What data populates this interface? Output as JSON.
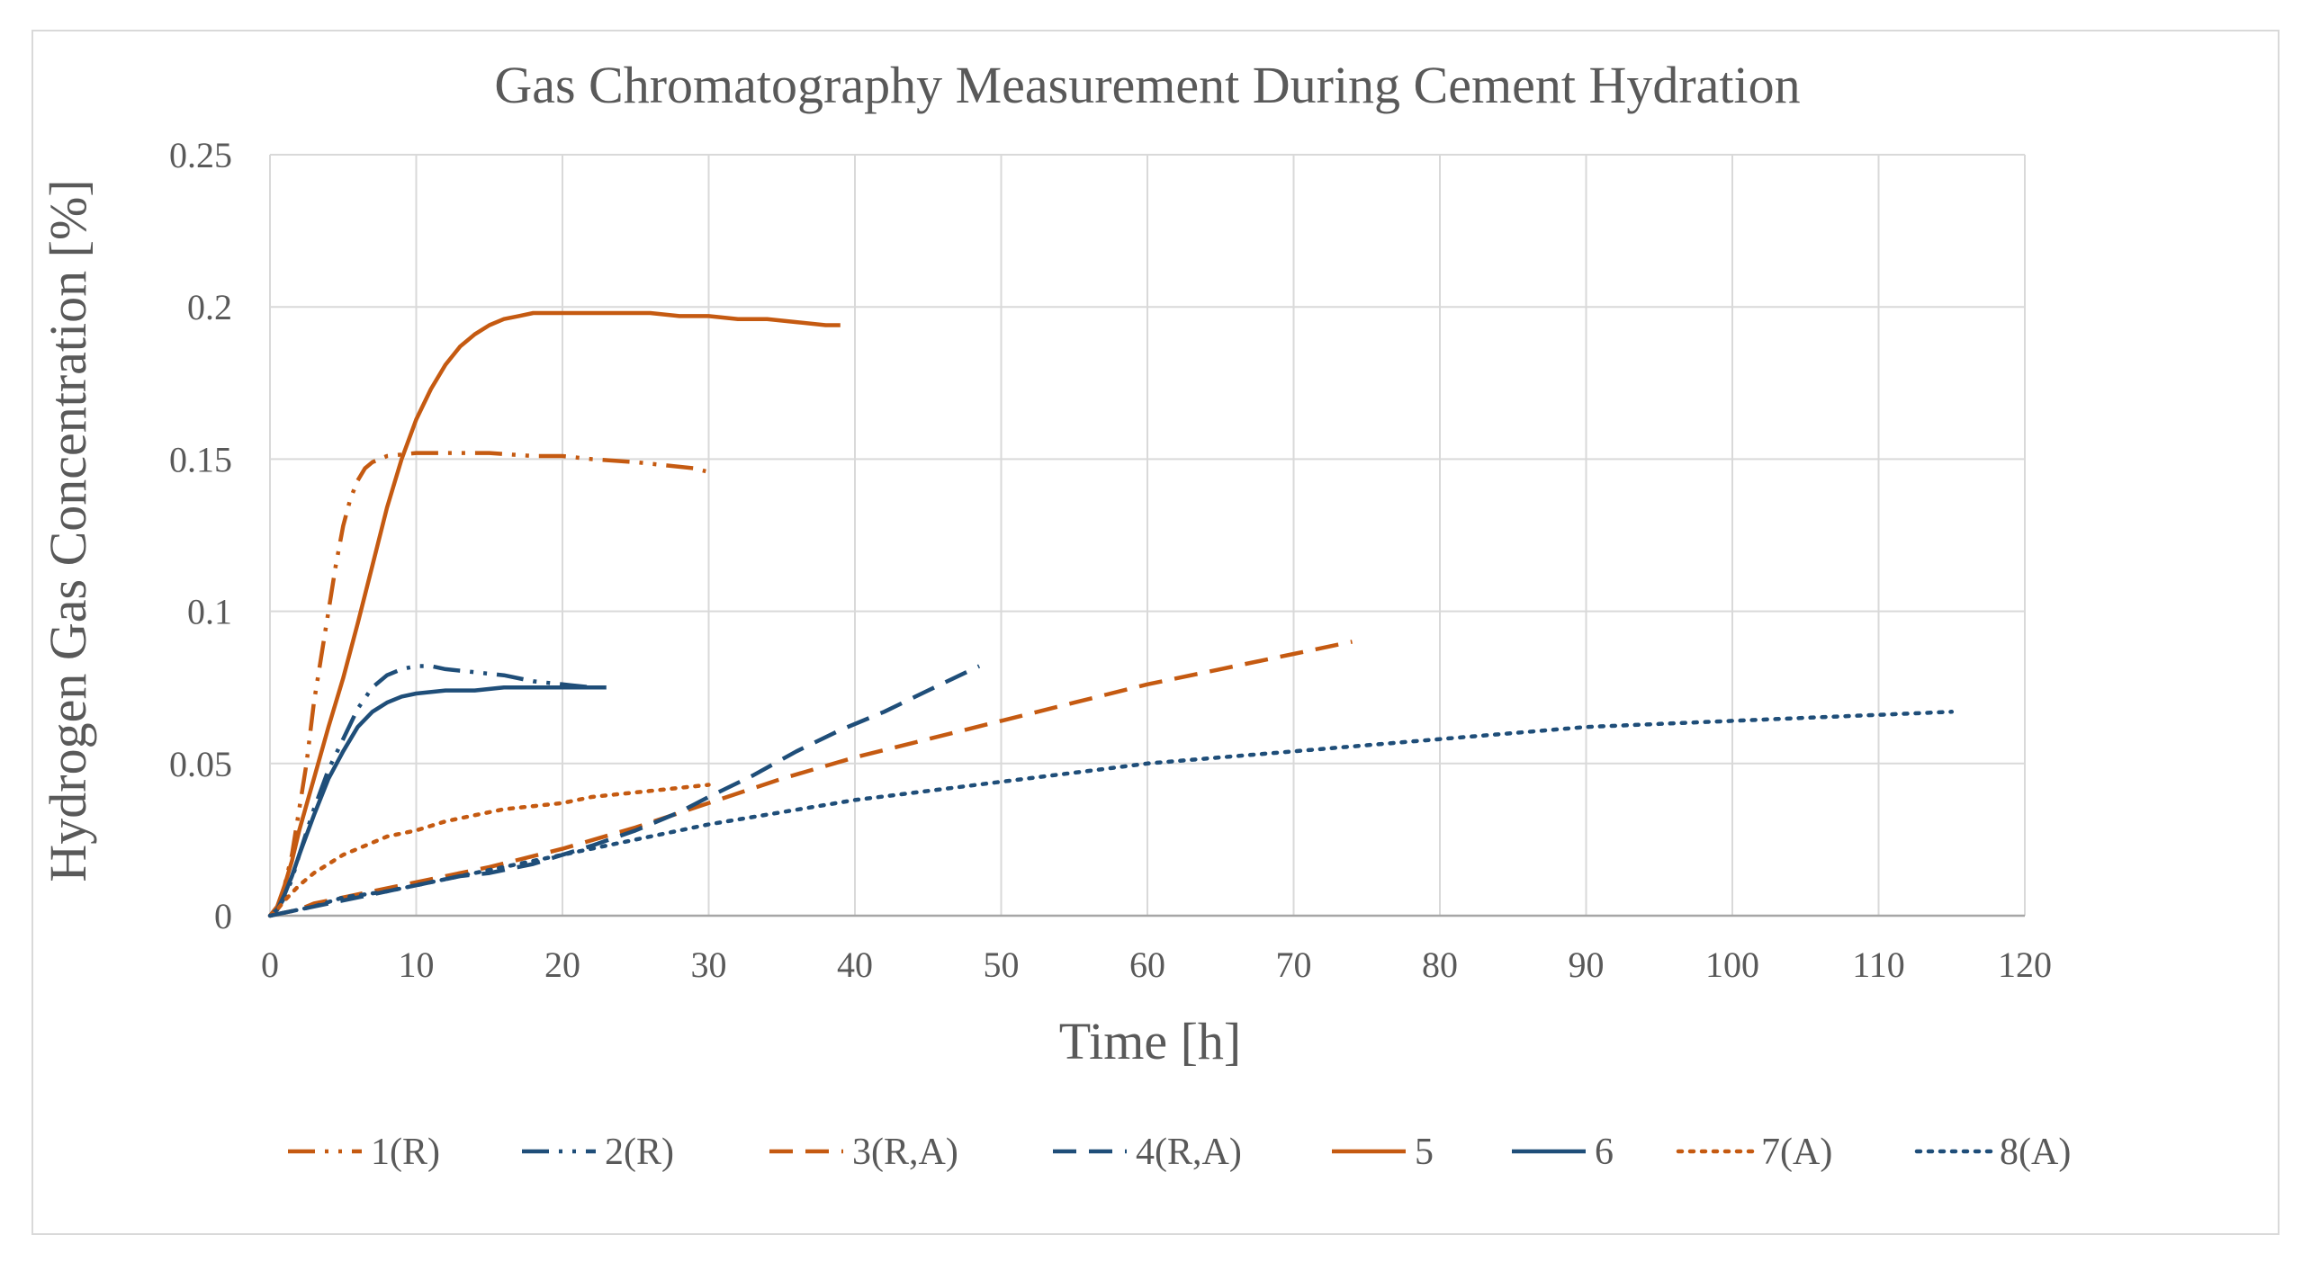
{
  "chart_data": {
    "type": "line",
    "title": "Gas Chromatography Measurement During Cement Hydration",
    "xlabel": "Time [h]",
    "ylabel": "Hydrogen Gas Concentration [%]",
    "xlim": [
      0,
      120
    ],
    "ylim": [
      0,
      0.25
    ],
    "x_ticks": [
      "0",
      "10",
      "20",
      "30",
      "40",
      "50",
      "60",
      "70",
      "80",
      "90",
      "100",
      "110",
      "120"
    ],
    "y_ticks": [
      "0",
      "0.05",
      "0.1",
      "0.15",
      "0.2",
      "0.25"
    ],
    "grid": true,
    "legend_position": "bottom",
    "series": [
      {
        "name": "1(R)",
        "color": "#C55A11",
        "dash": "long-dash-dot-dot",
        "points": [
          [
            0,
            0
          ],
          [
            0.5,
            0.002
          ],
          [
            1,
            0.01
          ],
          [
            1.5,
            0.02
          ],
          [
            2,
            0.035
          ],
          [
            2.5,
            0.05
          ],
          [
            3,
            0.07
          ],
          [
            3.5,
            0.085
          ],
          [
            4,
            0.1
          ],
          [
            4.5,
            0.115
          ],
          [
            5,
            0.128
          ],
          [
            5.5,
            0.137
          ],
          [
            6,
            0.143
          ],
          [
            6.5,
            0.147
          ],
          [
            7,
            0.149
          ],
          [
            8,
            0.151
          ],
          [
            10,
            0.152
          ],
          [
            12,
            0.152
          ],
          [
            15,
            0.152
          ],
          [
            18,
            0.151
          ],
          [
            20,
            0.151
          ],
          [
            22,
            0.15
          ],
          [
            25,
            0.149
          ],
          [
            27,
            0.148
          ],
          [
            29,
            0.147
          ],
          [
            29.8,
            0.146
          ]
        ]
      },
      {
        "name": "2(R)",
        "color": "#1F4E79",
        "dash": "long-dash-dot-dot",
        "points": [
          [
            0,
            0
          ],
          [
            0.5,
            0.002
          ],
          [
            1,
            0.006
          ],
          [
            1.5,
            0.012
          ],
          [
            2,
            0.02
          ],
          [
            3,
            0.035
          ],
          [
            4,
            0.048
          ],
          [
            5,
            0.058
          ],
          [
            6,
            0.068
          ],
          [
            7,
            0.075
          ],
          [
            8,
            0.079
          ],
          [
            9,
            0.081
          ],
          [
            10,
            0.082
          ],
          [
            11,
            0.082
          ],
          [
            12,
            0.081
          ],
          [
            14,
            0.08
          ],
          [
            16,
            0.079
          ],
          [
            18,
            0.077
          ],
          [
            20,
            0.076
          ],
          [
            22,
            0.075
          ],
          [
            23,
            0.075
          ]
        ]
      },
      {
        "name": "3(R,A)",
        "color": "#C55A11",
        "dash": "long-dash",
        "points": [
          [
            0,
            0
          ],
          [
            1,
            0.001
          ],
          [
            2,
            0.002
          ],
          [
            3,
            0.004
          ],
          [
            5,
            0.006
          ],
          [
            7,
            0.008
          ],
          [
            10,
            0.011
          ],
          [
            15,
            0.016
          ],
          [
            20,
            0.022
          ],
          [
            25,
            0.029
          ],
          [
            30,
            0.037
          ],
          [
            35,
            0.045
          ],
          [
            40,
            0.052
          ],
          [
            45,
            0.058
          ],
          [
            50,
            0.064
          ],
          [
            55,
            0.07
          ],
          [
            60,
            0.076
          ],
          [
            65,
            0.081
          ],
          [
            70,
            0.086
          ],
          [
            74,
            0.09
          ]
        ]
      },
      {
        "name": "4(R,A)",
        "color": "#1F4E79",
        "dash": "long-dash",
        "points": [
          [
            0,
            0
          ],
          [
            1,
            0.001
          ],
          [
            2,
            0.002
          ],
          [
            3,
            0.003
          ],
          [
            5,
            0.005
          ],
          [
            8,
            0.008
          ],
          [
            10,
            0.01
          ],
          [
            13,
            0.013
          ],
          [
            15,
            0.014
          ],
          [
            18,
            0.017
          ],
          [
            20,
            0.02
          ],
          [
            22,
            0.023
          ],
          [
            25,
            0.028
          ],
          [
            28,
            0.034
          ],
          [
            30,
            0.039
          ],
          [
            33,
            0.046
          ],
          [
            36,
            0.054
          ],
          [
            39,
            0.061
          ],
          [
            42,
            0.067
          ],
          [
            45,
            0.074
          ],
          [
            48.5,
            0.082
          ]
        ]
      },
      {
        "name": "5",
        "color": "#C55A11",
        "dash": "solid",
        "points": [
          [
            0,
            0
          ],
          [
            0.5,
            0.003
          ],
          [
            1,
            0.01
          ],
          [
            1.5,
            0.018
          ],
          [
            2,
            0.028
          ],
          [
            3,
            0.045
          ],
          [
            4,
            0.062
          ],
          [
            5,
            0.078
          ],
          [
            6,
            0.096
          ],
          [
            7,
            0.115
          ],
          [
            8,
            0.134
          ],
          [
            9,
            0.15
          ],
          [
            10,
            0.163
          ],
          [
            11,
            0.173
          ],
          [
            12,
            0.181
          ],
          [
            13,
            0.187
          ],
          [
            14,
            0.191
          ],
          [
            15,
            0.194
          ],
          [
            16,
            0.196
          ],
          [
            17,
            0.197
          ],
          [
            18,
            0.198
          ],
          [
            20,
            0.198
          ],
          [
            22,
            0.198
          ],
          [
            24,
            0.198
          ],
          [
            26,
            0.198
          ],
          [
            28,
            0.197
          ],
          [
            30,
            0.197
          ],
          [
            32,
            0.196
          ],
          [
            34,
            0.196
          ],
          [
            36,
            0.195
          ],
          [
            38,
            0.194
          ],
          [
            39,
            0.194
          ]
        ]
      },
      {
        "name": "6",
        "color": "#1F4E79",
        "dash": "solid",
        "points": [
          [
            0,
            0
          ],
          [
            0.5,
            0.002
          ],
          [
            1,
            0.007
          ],
          [
            1.5,
            0.013
          ],
          [
            2,
            0.02
          ],
          [
            3,
            0.033
          ],
          [
            4,
            0.045
          ],
          [
            5,
            0.054
          ],
          [
            6,
            0.062
          ],
          [
            7,
            0.067
          ],
          [
            8,
            0.07
          ],
          [
            9,
            0.072
          ],
          [
            10,
            0.073
          ],
          [
            12,
            0.074
          ],
          [
            14,
            0.074
          ],
          [
            16,
            0.075
          ],
          [
            18,
            0.075
          ],
          [
            20,
            0.075
          ],
          [
            23,
            0.075
          ]
        ]
      },
      {
        "name": "7(A)",
        "color": "#C55A11",
        "dash": "dot",
        "points": [
          [
            0,
            0
          ],
          [
            0.5,
            0.002
          ],
          [
            1,
            0.005
          ],
          [
            2,
            0.01
          ],
          [
            3,
            0.014
          ],
          [
            4,
            0.017
          ],
          [
            5,
            0.02
          ],
          [
            6,
            0.022
          ],
          [
            7,
            0.024
          ],
          [
            8,
            0.026
          ],
          [
            10,
            0.028
          ],
          [
            12,
            0.031
          ],
          [
            14,
            0.033
          ],
          [
            16,
            0.035
          ],
          [
            18,
            0.036
          ],
          [
            20,
            0.037
          ],
          [
            22,
            0.039
          ],
          [
            24,
            0.04
          ],
          [
            26,
            0.041
          ],
          [
            28,
            0.042
          ],
          [
            30,
            0.043
          ]
        ]
      },
      {
        "name": "8(A)",
        "color": "#1F4E79",
        "dash": "dot",
        "points": [
          [
            0,
            0
          ],
          [
            1,
            0.001
          ],
          [
            2,
            0.002
          ],
          [
            3,
            0.003
          ],
          [
            5,
            0.006
          ],
          [
            8,
            0.008
          ],
          [
            10,
            0.01
          ],
          [
            15,
            0.015
          ],
          [
            20,
            0.02
          ],
          [
            25,
            0.025
          ],
          [
            30,
            0.03
          ],
          [
            35,
            0.034
          ],
          [
            40,
            0.038
          ],
          [
            45,
            0.041
          ],
          [
            50,
            0.044
          ],
          [
            55,
            0.047
          ],
          [
            60,
            0.05
          ],
          [
            65,
            0.052
          ],
          [
            70,
            0.054
          ],
          [
            75,
            0.056
          ],
          [
            80,
            0.058
          ],
          [
            85,
            0.06
          ],
          [
            90,
            0.062
          ],
          [
            95,
            0.063
          ],
          [
            100,
            0.064
          ],
          [
            105,
            0.065
          ],
          [
            110,
            0.066
          ],
          [
            115,
            0.067
          ]
        ]
      }
    ]
  }
}
